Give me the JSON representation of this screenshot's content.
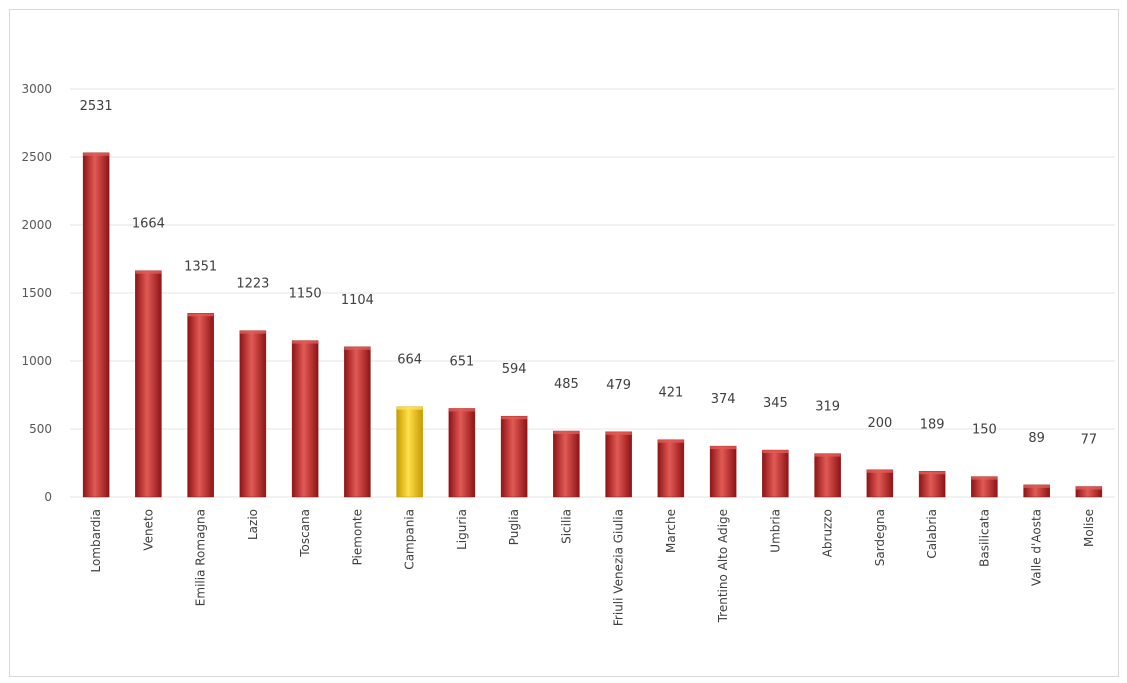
{
  "chart_data": {
    "type": "bar",
    "categories": [
      "Lombardia",
      "Veneto",
      "Emilia Romagna",
      "Lazio",
      "Toscana",
      "Piemonte",
      "Campania",
      "Liguria",
      "Puglia",
      "Sicilia",
      "Friuli Venezia Giulia",
      "Marche",
      "Trentino Alto Adige",
      "Umbria",
      "Abruzzo",
      "Sardegna",
      "Calabria",
      "Basilicata",
      "Valle d'Aosta",
      "Molise"
    ],
    "values": [
      2531,
      1664,
      1351,
      1223,
      1150,
      1104,
      664,
      651,
      594,
      485,
      479,
      421,
      374,
      345,
      319,
      200,
      189,
      150,
      89,
      77
    ],
    "highlighted_category": "Campania",
    "ylim": [
      0,
      3000
    ],
    "yticks": [
      0,
      500,
      1000,
      1500,
      2000,
      2500,
      3000
    ],
    "grid": true,
    "data_labels": true,
    "colors": {
      "bar": "#c0282a",
      "bar_dark": "#8e1416",
      "bar_light": "#e25a55",
      "highlight": "#f5c400",
      "highlight_dark": "#c99a00",
      "highlight_light": "#ffe04d",
      "grid": "#e6e6e6"
    }
  }
}
